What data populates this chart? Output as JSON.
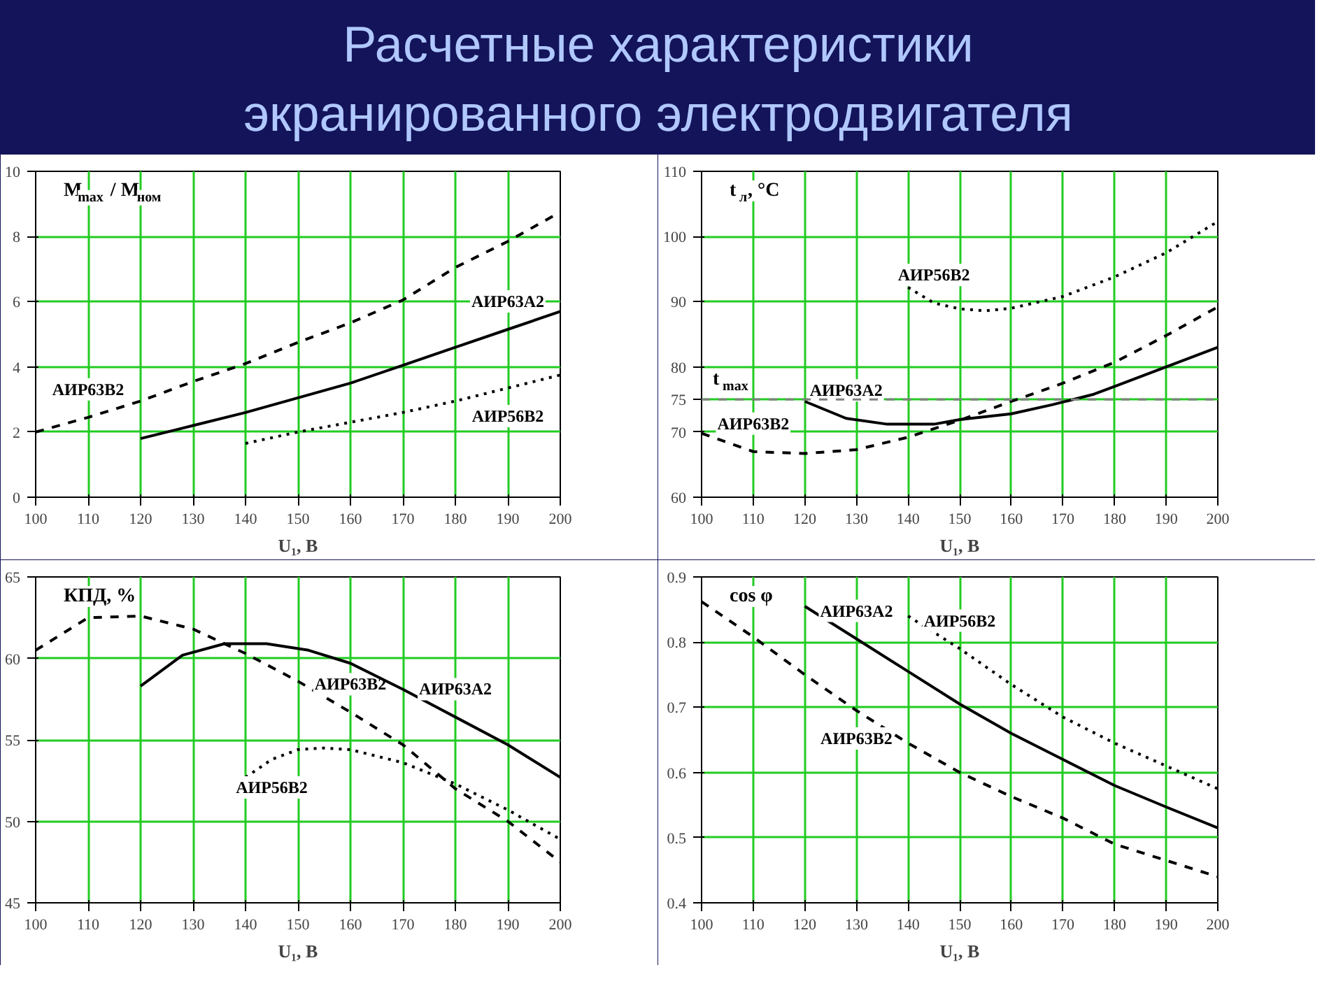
{
  "chart_data": [
    {
      "type": "line",
      "title": "Расчетные характеристики экранированного электродвигателя",
      "xlabel": "U₁, B",
      "ylabel": "M$_{max}$ / M$_{ном}$",
      "xlim": [
        100,
        200
      ],
      "xticks": [
        100,
        110,
        120,
        130,
        140,
        150,
        160,
        170,
        180,
        190,
        200
      ],
      "ylim": [
        0,
        10
      ],
      "yticks": [
        0,
        2,
        4,
        6,
        8,
        10
      ],
      "grid": true,
      "series": [
        {
          "name": "АИР63В2",
          "color": "#000000",
          "line_style": "dashed",
          "x": [
            100,
            110,
            120,
            130,
            140,
            150,
            160,
            170,
            180,
            190,
            200
          ],
          "values": [
            2.0,
            2.45,
            2.95,
            3.55,
            4.1,
            4.75,
            5.35,
            6.05,
            7.05,
            7.85,
            8.75
          ]
        },
        {
          "name": "АИР63А2",
          "color": "#000000",
          "line_style": "solid",
          "x": [
            120,
            130,
            140,
            150,
            160,
            170,
            180,
            190,
            200
          ],
          "values": [
            1.8,
            2.2,
            2.6,
            3.05,
            3.5,
            4.05,
            4.6,
            5.15,
            5.7
          ]
        },
        {
          "name": "АИР56В2",
          "color": "#000000",
          "line_style": "dotted",
          "x": [
            140,
            150,
            160,
            170,
            180,
            190,
            200
          ],
          "values": [
            1.65,
            2.0,
            2.3,
            2.6,
            2.95,
            3.35,
            3.75
          ]
        }
      ]
    },
    {
      "type": "line",
      "xlabel": "U₁, B",
      "ylabel": "t$_{л}$, °C",
      "xlim": [
        100,
        200
      ],
      "xticks": [
        100,
        110,
        120,
        130,
        140,
        150,
        160,
        170,
        180,
        190,
        200
      ],
      "ylim": [
        60,
        110
      ],
      "yticks": [
        60,
        70,
        75,
        80,
        90,
        100,
        110
      ],
      "grid": true,
      "ref_lines": [
        {
          "axis": "y",
          "value": 75,
          "label": "t$_{max}$",
          "color": "#808080",
          "line_style": "dashed"
        }
      ],
      "series": [
        {
          "name": "АИР56В2",
          "color": "#000000",
          "line_style": "dotted",
          "x": [
            140,
            145,
            150,
            155,
            160,
            170,
            180,
            190,
            200
          ],
          "values": [
            92.2,
            89.8,
            88.9,
            88.6,
            89.0,
            90.8,
            93.8,
            97.5,
            102.3
          ]
        },
        {
          "name": "АИР63В2",
          "color": "#000000",
          "line_style": "dashed",
          "x": [
            100,
            110,
            120,
            130,
            140,
            150,
            160,
            170,
            180,
            190,
            200
          ],
          "values": [
            69.8,
            67.0,
            66.7,
            67.3,
            69.2,
            71.8,
            74.7,
            77.5,
            80.7,
            84.8,
            89.2
          ]
        },
        {
          "name": "АИР63А2",
          "color": "#000000",
          "line_style": "solid",
          "x": [
            120,
            128,
            136,
            145,
            150,
            160,
            168,
            176,
            180,
            190,
            200
          ],
          "values": [
            74.7,
            72.1,
            71.2,
            71.2,
            71.9,
            72.8,
            74.2,
            75.8,
            77.0,
            80.0,
            83.0
          ]
        }
      ]
    },
    {
      "type": "line",
      "xlabel": "U₁, B",
      "ylabel": "КПД, %",
      "xlim": [
        100,
        200
      ],
      "xticks": [
        100,
        110,
        120,
        130,
        140,
        150,
        160,
        170,
        180,
        190,
        200
      ],
      "ylim": [
        45,
        65
      ],
      "yticks": [
        45,
        50,
        55,
        60,
        65
      ],
      "grid": true,
      "series": [
        {
          "name": "АИР63В2",
          "color": "#000000",
          "line_style": "dashed",
          "x": [
            100,
            110,
            120,
            130,
            140,
            150,
            160,
            170,
            180,
            190,
            200
          ],
          "values": [
            60.5,
            62.5,
            62.6,
            61.8,
            60.3,
            58.6,
            56.7,
            54.7,
            52.0,
            50.0,
            47.5
          ]
        },
        {
          "name": "АИР63А2",
          "color": "#000000",
          "line_style": "solid",
          "x": [
            120,
            128,
            136,
            144,
            152,
            160,
            170,
            180,
            190,
            200
          ],
          "values": [
            58.3,
            60.2,
            60.9,
            60.9,
            60.5,
            59.7,
            58.1,
            56.4,
            54.7,
            52.7
          ]
        },
        {
          "name": "АИР56В2",
          "color": "#000000",
          "line_style": "dotted",
          "x": [
            140,
            145,
            150,
            155,
            160,
            170,
            180,
            190,
            200
          ],
          "values": [
            52.7,
            53.8,
            54.4,
            54.5,
            54.4,
            53.6,
            52.3,
            50.7,
            48.9
          ]
        }
      ]
    },
    {
      "type": "line",
      "xlabel": "U₁, B",
      "ylabel": "cos φ",
      "xlim": [
        100,
        200
      ],
      "xticks": [
        100,
        110,
        120,
        130,
        140,
        150,
        160,
        170,
        180,
        190,
        200
      ],
      "ylim": [
        0.4,
        0.9
      ],
      "yticks": [
        0.4,
        0.5,
        0.6,
        0.7,
        0.8,
        0.9
      ],
      "grid": true,
      "series": [
        {
          "name": "АИР63А2",
          "color": "#000000",
          "line_style": "solid",
          "x": [
            120,
            130,
            140,
            150,
            160,
            170,
            180,
            190,
            200
          ],
          "values": [
            0.855,
            0.805,
            0.755,
            0.705,
            0.66,
            0.62,
            0.58,
            0.547,
            0.515
          ]
        },
        {
          "name": "АИР56В2",
          "color": "#000000",
          "line_style": "dotted",
          "x": [
            140,
            150,
            160,
            170,
            180,
            190,
            200
          ],
          "values": [
            0.84,
            0.79,
            0.735,
            0.685,
            0.645,
            0.61,
            0.575
          ]
        },
        {
          "name": "АИР63В2",
          "color": "#000000",
          "line_style": "dashed",
          "x": [
            100,
            110,
            120,
            130,
            140,
            150,
            160,
            170,
            180,
            190,
            200
          ],
          "values": [
            0.862,
            0.808,
            0.75,
            0.695,
            0.645,
            0.6,
            0.563,
            0.53,
            0.49,
            0.465,
            0.44
          ]
        }
      ]
    }
  ]
}
